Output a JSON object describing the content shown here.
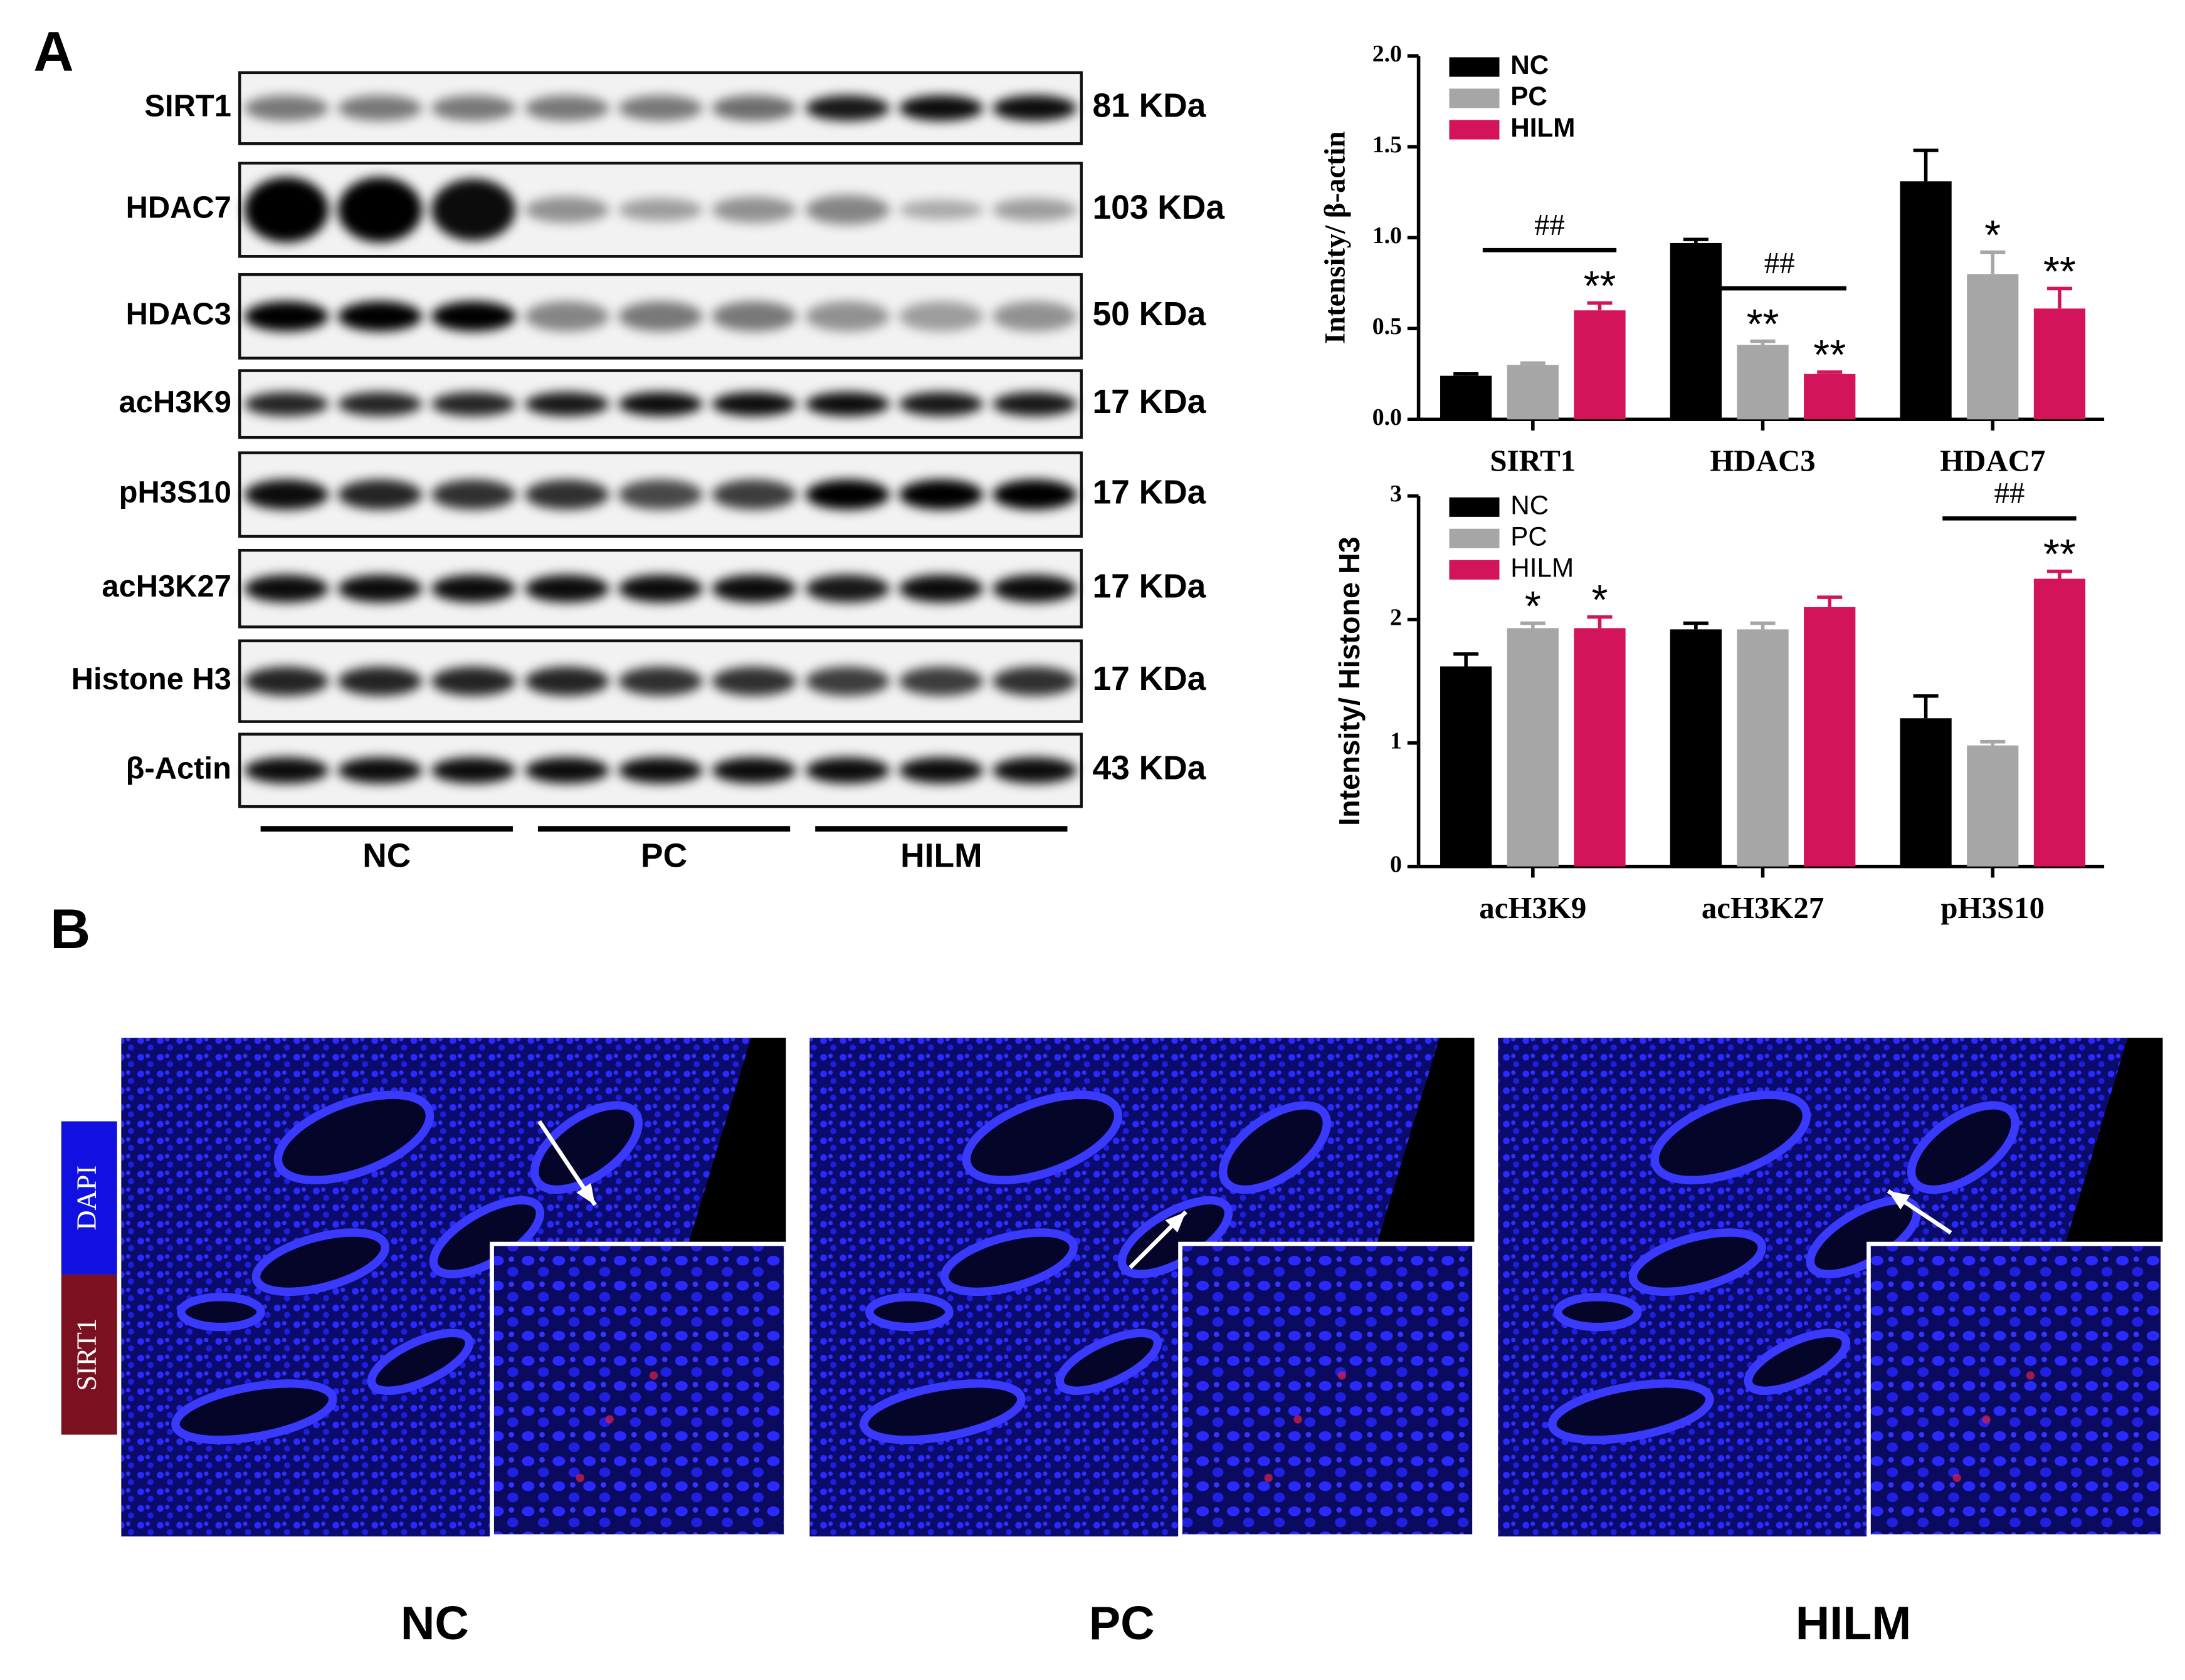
{
  "panels": {
    "a": "A",
    "b": "B"
  },
  "blot": {
    "rows": [
      {
        "label": "SIRT1",
        "size": "81 KDa"
      },
      {
        "label": "HDAC7",
        "size": "103 KDa"
      },
      {
        "label": "HDAC3",
        "size": "50 KDa"
      },
      {
        "label": "acH3K9",
        "size": "17 KDa"
      },
      {
        "label": "pH3S10",
        "size": "17 KDa"
      },
      {
        "label": "acH3K27",
        "size": "17 KDa"
      },
      {
        "label": "Histone H3",
        "size": "17 KDa"
      },
      {
        "label": "β-Actin",
        "size": "43 KDa"
      }
    ],
    "groups": [
      "NC",
      "PC",
      "HILM"
    ]
  },
  "chart_data": [
    {
      "type": "bar",
      "y_label": "Intensity/ β-actin",
      "legend": "upper left",
      "categories": [
        "SIRT1",
        "HDAC3",
        "HDAC7"
      ],
      "series": [
        {
          "name": "NC",
          "color": "#000000",
          "values": [
            0.24,
            0.97,
            1.31
          ],
          "errors": [
            0.01,
            0.02,
            0.17
          ],
          "significance": [
            null,
            null,
            null
          ]
        },
        {
          "name": "PC",
          "color": "#a6a6a6",
          "values": [
            0.3,
            0.41,
            0.8
          ],
          "errors": [
            0.01,
            0.02,
            0.12
          ],
          "significance": [
            null,
            "**",
            "*"
          ]
        },
        {
          "name": "HILM",
          "color": "#d4145a",
          "values": [
            0.6,
            0.25,
            0.61
          ],
          "errors": [
            0.04,
            0.01,
            0.11
          ],
          "significance": [
            "**",
            "**",
            "**"
          ]
        }
      ],
      "comparisons": [
        {
          "text": "##",
          "category": "SIRT1"
        },
        {
          "text": "##",
          "category": "HDAC3"
        }
      ],
      "ylim": [
        0,
        2.0
      ],
      "yticks": [
        {
          "value": 0,
          "label": "0.0"
        },
        {
          "value": 0.5,
          "label": "0.5"
        },
        {
          "value": 1.0,
          "label": "1.0"
        },
        {
          "value": 1.5,
          "label": "1.5"
        },
        {
          "value": 2.0,
          "label": "2.0"
        }
      ]
    },
    {
      "type": "bar",
      "y_label": "Intensity/ Histone H3",
      "legend": "upper left",
      "categories": [
        "acH3K9",
        "acH3K27",
        "pH3S10"
      ],
      "series": [
        {
          "name": "NC",
          "color": "#000000",
          "values": [
            1.62,
            1.92,
            1.2
          ],
          "errors": [
            0.1,
            0.05,
            0.18
          ],
          "significance": [
            null,
            null,
            null
          ]
        },
        {
          "name": "PC",
          "color": "#a6a6a6",
          "values": [
            1.93,
            1.92,
            0.98
          ],
          "errors": [
            0.04,
            0.05,
            0.03
          ],
          "significance": [
            "*",
            null,
            null
          ]
        },
        {
          "name": "HILM",
          "color": "#d4145a",
          "values": [
            1.93,
            2.1,
            2.33
          ],
          "errors": [
            0.09,
            0.08,
            0.06
          ],
          "significance": [
            "*",
            null,
            "**"
          ]
        }
      ],
      "comparisons": [
        {
          "text": "##",
          "category": "pH3S10"
        }
      ],
      "ylim": [
        0,
        3
      ],
      "yticks": [
        0,
        1,
        2,
        3
      ]
    }
  ],
  "images": {
    "labels": [
      "NC",
      "PC",
      "HILM"
    ],
    "channels": [
      "DAPI",
      "SIRT1"
    ]
  }
}
